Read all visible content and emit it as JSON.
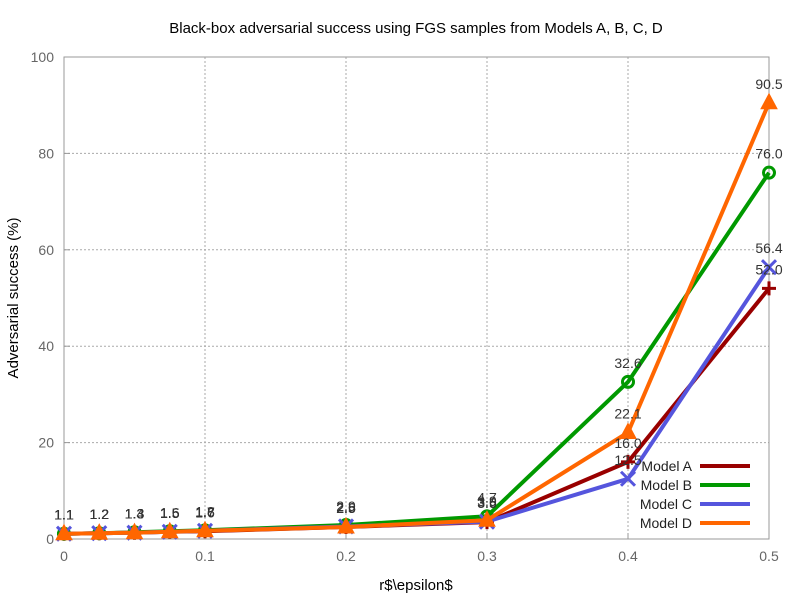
{
  "chart_data": {
    "type": "line",
    "title": "Black-box adversarial success using FGS samples from Models A, B, C, D",
    "xlabel": "r$\\epsilon$",
    "ylabel": "Adversarial success (%)",
    "xlim": [
      0,
      0.5
    ],
    "ylim": [
      0,
      100
    ],
    "x_ticks": [
      "0",
      "0.1",
      "0.2",
      "0.3",
      "0.4",
      "0.5"
    ],
    "y_ticks": [
      "0",
      "20",
      "40",
      "60",
      "80",
      "100"
    ],
    "grid": true,
    "legend_position": "bottom-right",
    "x": [
      0,
      0.025,
      0.05,
      0.075,
      0.1,
      0.2,
      0.3,
      0.4,
      0.5
    ],
    "series": [
      {
        "name": "Model A",
        "color": "#990000",
        "marker": "plus",
        "values": [
          1.1,
          1.2,
          1.3,
          1.5,
          1.6,
          2.5,
          3.5,
          16.0,
          52.0
        ],
        "labels": [
          "1.1",
          "1.2",
          "1.3",
          "1.5",
          "1.6",
          "2.5",
          "3.5",
          "16.0",
          "52.0"
        ]
      },
      {
        "name": "Model B",
        "color": "#009900",
        "marker": "circle",
        "values": [
          1.1,
          1.2,
          1.4,
          1.6,
          1.8,
          2.9,
          4.7,
          32.6,
          76.0
        ],
        "labels": [
          "1.1",
          "1.2",
          "1.4",
          "1.6",
          "1.8",
          "2.9",
          "4.7",
          "32.6",
          "76.0"
        ]
      },
      {
        "name": "Model C",
        "color": "#5555dd",
        "marker": "x",
        "values": [
          1.1,
          1.2,
          1.3,
          1.5,
          1.7,
          2.6,
          3.6,
          12.5,
          56.4
        ],
        "labels": [
          "1.1",
          "1.2",
          "1.3",
          "1.5",
          "1.7",
          "2.6",
          "3.6",
          "12.5",
          "56.4"
        ]
      },
      {
        "name": "Model D",
        "color": "#ff6600",
        "marker": "triangle",
        "values": [
          1.1,
          1.2,
          1.3,
          1.5,
          1.7,
          2.5,
          3.9,
          22.1,
          90.5
        ],
        "labels": [
          "1.1",
          "1.2",
          "1.3",
          "1.5",
          "1.7",
          "2.5",
          "3.9",
          "22.1",
          "90.5"
        ]
      }
    ]
  }
}
